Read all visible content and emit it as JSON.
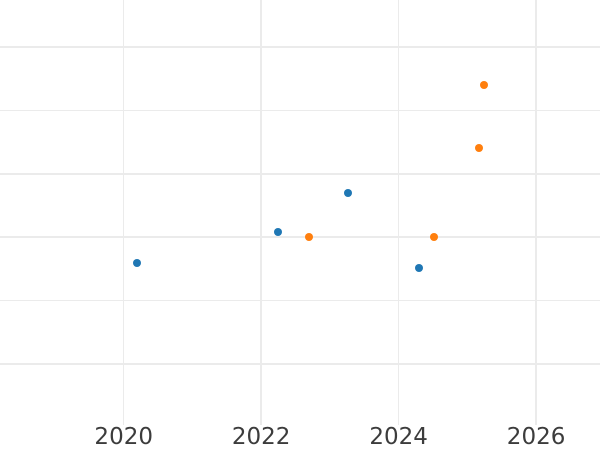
{
  "figure": {
    "background_color": "#ffffff",
    "grid_color": "#ebebeb",
    "tick_label_color": "#3c3c3c"
  },
  "chart_data": {
    "type": "scatter",
    "title": "",
    "xlabel": "",
    "ylabel": "",
    "grid": true,
    "legend": [],
    "x_ticks": [
      {
        "value": 2020,
        "label": "2020"
      },
      {
        "value": 2022,
        "label": "2022"
      },
      {
        "value": 2024,
        "label": "2024"
      },
      {
        "value": 2026,
        "label": "2026"
      }
    ],
    "y_tick_labels": [],
    "y_gridlines": [
      1,
      2,
      3,
      4,
      5,
      6
    ],
    "xlim": [
      2018.2,
      2026.93
    ],
    "ylim": [
      0.04,
      6.74
    ],
    "series": [
      {
        "name": "blue",
        "color": "#1f77b4",
        "points": [
          {
            "x": 2020.2,
            "y": 2.59
          },
          {
            "x": 2022.24,
            "y": 3.09
          },
          {
            "x": 2023.26,
            "y": 3.69
          },
          {
            "x": 2024.29,
            "y": 2.51
          }
        ]
      },
      {
        "name": "orange",
        "color": "#ff7f0e",
        "points": [
          {
            "x": 2022.7,
            "y": 3.0
          },
          {
            "x": 2024.51,
            "y": 3.0
          },
          {
            "x": 2025.17,
            "y": 4.4
          },
          {
            "x": 2025.24,
            "y": 5.4
          }
        ]
      }
    ]
  }
}
